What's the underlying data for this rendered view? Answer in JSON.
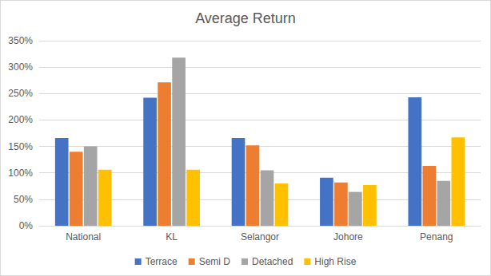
{
  "chart_data": {
    "type": "bar",
    "title": "Average Return",
    "categories": [
      "National",
      "KL",
      "Selangor",
      "Johore",
      "Penang"
    ],
    "series": [
      {
        "name": "Terrace",
        "color": "#4472c4",
        "values": [
          166,
          242,
          166,
          91,
          243
        ]
      },
      {
        "name": "Semi D",
        "color": "#ed7d31",
        "values": [
          140,
          271,
          152,
          82,
          113
        ]
      },
      {
        "name": "Detached",
        "color": "#a5a5a5",
        "values": [
          150,
          318,
          105,
          64,
          85
        ]
      },
      {
        "name": "High Rise",
        "color": "#ffc000",
        "values": [
          106,
          106,
          80,
          77,
          167
        ]
      }
    ],
    "ylim": [
      0,
      350
    ],
    "yticks": [
      {
        "value": 0,
        "label": "0%"
      },
      {
        "value": 50,
        "label": "50%"
      },
      {
        "value": 100,
        "label": "100%"
      },
      {
        "value": 150,
        "label": "150%"
      },
      {
        "value": 200,
        "label": "200%"
      },
      {
        "value": 250,
        "label": "250%"
      },
      {
        "value": 300,
        "label": "300%"
      },
      {
        "value": 350,
        "label": "350%"
      }
    ],
    "grid": true,
    "legend": "bottom"
  }
}
